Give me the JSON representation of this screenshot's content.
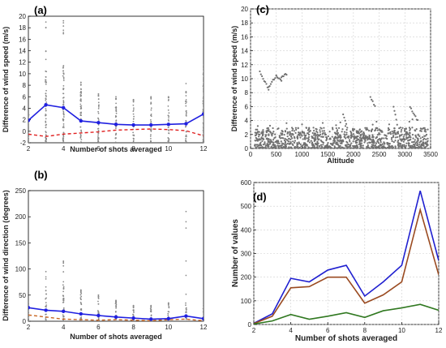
{
  "chart_data": [
    {
      "panel": "(a)",
      "type": "scatter",
      "xlabel": "Number of shots averaged",
      "ylabel": "Difference of wind speed (m/s)",
      "xlim": [
        2,
        12
      ],
      "ylim": [
        -2,
        20
      ],
      "xticks": [
        2,
        4,
        6,
        8,
        10,
        12
      ],
      "yticks": [
        -2,
        0,
        2,
        4,
        6,
        8,
        10,
        12,
        14,
        16,
        18,
        20
      ],
      "grid": false,
      "series": [
        {
          "kind": "line-markers",
          "color": "#2020e0",
          "x": [
            2,
            3,
            4,
            5,
            6,
            7,
            8,
            9,
            10,
            11,
            12
          ],
          "y": [
            1.9,
            4.6,
            4.1,
            1.8,
            1.5,
            1.2,
            1.1,
            1.1,
            1.2,
            1.3,
            3.0
          ]
        },
        {
          "kind": "dashed",
          "color": "#e02020",
          "x": [
            2,
            3,
            4,
            5,
            6,
            7,
            8,
            9,
            10,
            11,
            12
          ],
          "y": [
            -0.5,
            -0.9,
            -0.5,
            -0.3,
            -0.1,
            0.2,
            0.3,
            0.4,
            0.3,
            0.1,
            -0.8
          ]
        },
        {
          "kind": "scatter-columns",
          "color": "#8a8a8a",
          "x": [
            2,
            3,
            4,
            5,
            6,
            7,
            8,
            9,
            10,
            11,
            12
          ],
          "dense_max": [
            3.5,
            10.5,
            11.5,
            8,
            6,
            5.5,
            5,
            5,
            5.5,
            6,
            11
          ],
          "outlier_max": [
            3.5,
            19,
            19.2,
            8.5,
            6.5,
            6,
            5.5,
            6,
            6,
            8.3,
            11.5
          ]
        }
      ]
    },
    {
      "panel": "(b)",
      "type": "scatter",
      "xlabel": "Number of shots averaged",
      "ylabel": "Difference of wind direction (degrees)",
      "xlim": [
        2,
        12
      ],
      "ylim": [
        0,
        250
      ],
      "xticks": [
        2,
        4,
        6,
        8,
        10,
        12
      ],
      "yticks": [
        0,
        50,
        100,
        150,
        200,
        250
      ],
      "grid": false,
      "series": [
        {
          "kind": "line-markers",
          "color": "#2020e0",
          "x": [
            2,
            3,
            4,
            5,
            6,
            7,
            8,
            9,
            10,
            11,
            12
          ],
          "y": [
            26,
            21,
            19,
            14,
            11,
            8,
            6,
            4,
            5,
            10,
            5
          ]
        },
        {
          "kind": "dashed",
          "color": "#c86420",
          "x": [
            2,
            3,
            4,
            5,
            6,
            7,
            8,
            9,
            10,
            11,
            12
          ],
          "y": [
            12,
            8,
            4,
            3,
            2,
            3,
            2,
            1,
            3,
            4,
            1
          ]
        },
        {
          "kind": "scatter-columns",
          "color": "#8a8a8a",
          "x": [
            2,
            3,
            4,
            5,
            6,
            7,
            8,
            9,
            10,
            11,
            12
          ],
          "dense_max": [
            30,
            55,
            75,
            55,
            45,
            35,
            25,
            25,
            30,
            35,
            25
          ],
          "outlier_max": [
            35,
            95,
            115,
            60,
            50,
            40,
            30,
            30,
            35,
            210,
            30
          ]
        }
      ]
    },
    {
      "panel": "(c)",
      "type": "scatter",
      "xlabel": "Altitude",
      "ylabel": "Difference of wind speed (m/s)",
      "xlim": [
        0,
        3500
      ],
      "ylim": [
        0,
        20
      ],
      "xticks": [
        0,
        500,
        1000,
        1500,
        2000,
        2500,
        3000,
        3500
      ],
      "yticks": [
        0,
        2,
        4,
        6,
        8,
        10,
        12,
        14,
        16,
        18,
        20
      ],
      "grid": true,
      "series": [
        {
          "kind": "scatter-cloud",
          "color": "#707070",
          "x_range": [
            80,
            3450
          ],
          "bulk_max": 3.0,
          "arcs": [
            [
              180,
              11.0,
              350,
              8.5
            ],
            [
              350,
              8.7,
              500,
              10.5
            ],
            [
              500,
              10.3,
              600,
              9.8
            ],
            [
              600,
              10.2,
              700,
              10.7
            ],
            [
              2330,
              7.5,
              2420,
              6.0
            ],
            [
              3100,
              6.0,
              3250,
              4.0
            ],
            [
              2780,
              6.0,
              2850,
              3.5
            ],
            [
              1800,
              5.0,
              1880,
              3.0
            ]
          ]
        }
      ]
    },
    {
      "panel": "(d)",
      "type": "line",
      "xlabel": "Number of shots averaged",
      "ylabel": "Number of values",
      "xlim": [
        2,
        12
      ],
      "ylim": [
        0,
        600
      ],
      "xticks": [
        2,
        4,
        6,
        8,
        10,
        12
      ],
      "yticks": [
        0,
        100,
        200,
        300,
        400,
        500,
        600
      ],
      "grid": true,
      "x": [
        2,
        3,
        4,
        5,
        6,
        7,
        8,
        9,
        10,
        11,
        12
      ],
      "series": [
        {
          "color": "#2020d0",
          "values": [
            5,
            45,
            195,
            180,
            230,
            250,
            120,
            180,
            250,
            565,
            270
          ]
        },
        {
          "color": "#9a4a20",
          "values": [
            4,
            35,
            155,
            160,
            200,
            200,
            90,
            125,
            180,
            485,
            210
          ]
        },
        {
          "color": "#307820",
          "values": [
            2,
            15,
            42,
            22,
            35,
            50,
            30,
            58,
            70,
            85,
            60
          ]
        }
      ]
    }
  ]
}
